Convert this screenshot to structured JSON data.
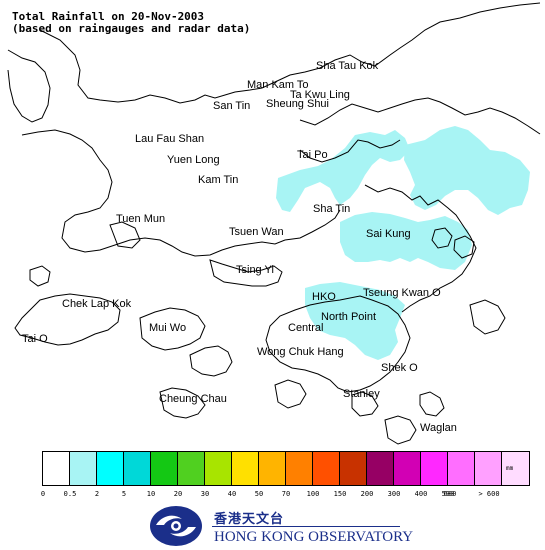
{
  "title": {
    "line1": "Total Rainfall on 20-Nov-2003",
    "line2": "(based on raingauges and radar data)"
  },
  "places": [
    {
      "name": "Sha Tau Kok"
    },
    {
      "name": "Man Kam To"
    },
    {
      "name": "Ta Kwu Ling"
    },
    {
      "name": "San Tin"
    },
    {
      "name": "Sheung Shui"
    },
    {
      "name": "Lau Fau Shan"
    },
    {
      "name": "Yuen Long"
    },
    {
      "name": "Tai Po"
    },
    {
      "name": "Kam Tin"
    },
    {
      "name": "Tuen Mun"
    },
    {
      "name": "Sha Tin"
    },
    {
      "name": "Tsuen Wan"
    },
    {
      "name": "Sai Kung"
    },
    {
      "name": "Tsing Yi"
    },
    {
      "name": "Chek Lap Kok"
    },
    {
      "name": "HKO"
    },
    {
      "name": "Tseung Kwan O"
    },
    {
      "name": "Mui Wo"
    },
    {
      "name": "North Point"
    },
    {
      "name": "Central"
    },
    {
      "name": "Tai O"
    },
    {
      "name": "Wong Chuk Hang"
    },
    {
      "name": "Shek O"
    },
    {
      "name": "Stanley"
    },
    {
      "name": "Cheung Chau"
    },
    {
      "name": "Waglan"
    }
  ],
  "legend": {
    "unit": "mm",
    "ticks": [
      "0",
      "0.5",
      "2",
      "5",
      "10",
      "20",
      "30",
      "40",
      "50",
      "70",
      "100",
      "150",
      "200",
      "300",
      "400",
      "500",
      "600",
      "> 600"
    ],
    "colors": [
      "#ffffff",
      "#a8f4f4",
      "#00ffff",
      "#00d8d8",
      "#14c814",
      "#50d020",
      "#a8e400",
      "#ffe000",
      "#ffb400",
      "#ff8000",
      "#ff5000",
      "#c83200",
      "#960064",
      "#d200b4",
      "#ff28ff",
      "#ff6eff",
      "#ffa0ff",
      "#ffdcff"
    ]
  },
  "rain_color": "#a8f4f4",
  "organization": {
    "name_zh": "香港天文台",
    "name_en": "HONG KONG OBSERVATORY",
    "brand_color": "#1b2f8a"
  }
}
